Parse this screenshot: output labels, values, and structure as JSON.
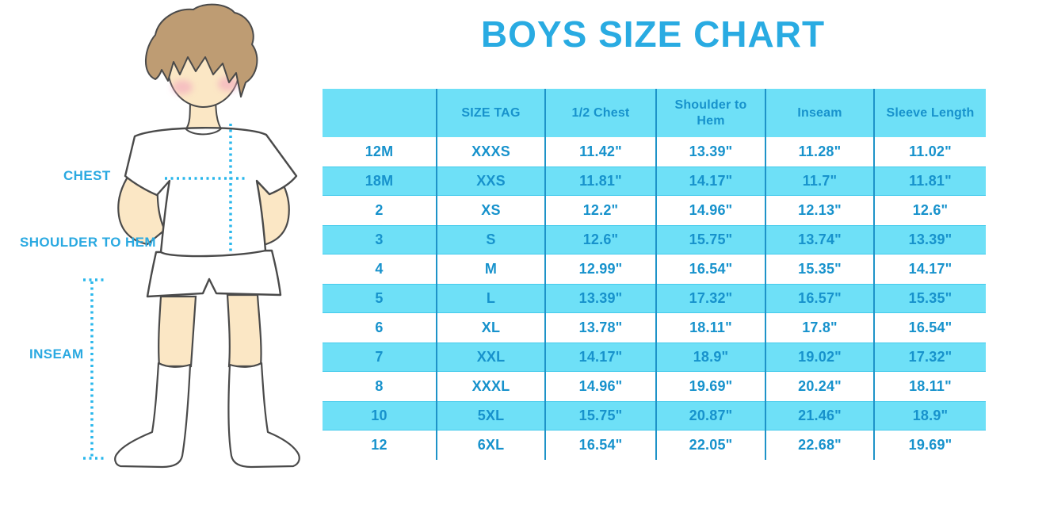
{
  "title": "BOYS SIZE CHART",
  "colors": {
    "title_blue": "#29ABE2",
    "table_text_blue": "#1792CC",
    "row_cyan": "#6EE0F7",
    "grid_line_blue": "#1E93C8",
    "label_blue": "#2AA9E1",
    "dotted_line_cyan": "#2AB7EC",
    "skin": "#FBE7C5",
    "hair_brown": "#BE9C73",
    "cheek_pink": "#F2A6BE",
    "outline_gray": "#4A4A4A"
  },
  "diagram": {
    "labels": {
      "chest": "CHEST",
      "shoulder_to_hem": "SHOULDER TO HEM",
      "inseam": "INSEAM"
    }
  },
  "chart_data": {
    "type": "table",
    "title": "BOYS SIZE CHART",
    "columns": [
      "",
      "SIZE TAG",
      "1/2 Chest",
      "Shoulder to Hem",
      "Inseam",
      "Sleeve Length"
    ],
    "rows": [
      [
        "12M",
        "XXXS",
        "11.42\"",
        "13.39\"",
        "11.28\"",
        "11.02\""
      ],
      [
        "18M",
        "XXS",
        "11.81\"",
        "14.17\"",
        "11.7\"",
        "11.81\""
      ],
      [
        "2",
        "XS",
        "12.2\"",
        "14.96\"",
        "12.13\"",
        "12.6\""
      ],
      [
        "3",
        "S",
        "12.6\"",
        "15.75\"",
        "13.74\"",
        "13.39\""
      ],
      [
        "4",
        "M",
        "12.99\"",
        "16.54\"",
        "15.35\"",
        "14.17\""
      ],
      [
        "5",
        "L",
        "13.39\"",
        "17.32\"",
        "16.57\"",
        "15.35\""
      ],
      [
        "6",
        "XL",
        "13.78\"",
        "18.11\"",
        "17.8\"",
        "16.54\""
      ],
      [
        "7",
        "XXL",
        "14.17\"",
        "18.9\"",
        "19.02\"",
        "17.32\""
      ],
      [
        "8",
        "XXXL",
        "14.96\"",
        "19.69\"",
        "20.24\"",
        "18.11\""
      ],
      [
        "10",
        "5XL",
        "15.75\"",
        "20.87\"",
        "21.46\"",
        "18.9\""
      ],
      [
        "12",
        "6XL",
        "16.54\"",
        "22.05\"",
        "22.68\"",
        "19.69\""
      ]
    ]
  }
}
